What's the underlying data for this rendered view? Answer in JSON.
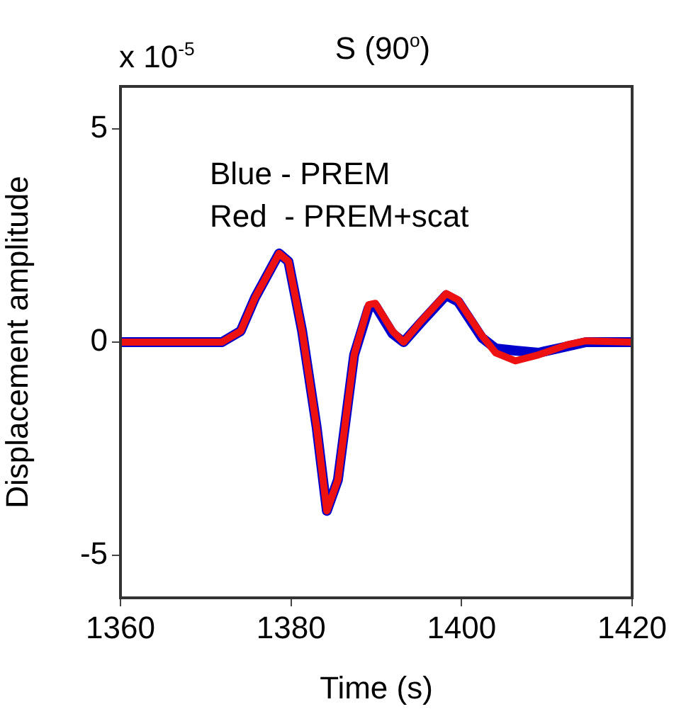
{
  "chart_data": {
    "type": "line",
    "title": "S (90$^{o}$)",
    "xlabel": "Time (s)",
    "ylabel": "Displacement amplitude",
    "annotations": [
      "x 10$^{-5}$",
      "Blue - PREM",
      "Red  - PREM+scat"
    ],
    "xlim": [
      1360,
      1420
    ],
    "xticks": [
      1360,
      1380,
      1400,
      1420
    ],
    "ylim": [
      -6,
      6
    ],
    "yticks": [
      -5,
      0,
      5
    ],
    "grid": false,
    "legend": false,
    "marker": "none",
    "line_style": "solid",
    "series": [
      {
        "color": "#0000cc",
        "x": [
          1360,
          1371.9,
          1374.1,
          1375.8,
          1378.6,
          1379.7,
          1381.3,
          1383.0,
          1384.2,
          1385.5,
          1387.4,
          1389.1,
          1389.9,
          1391.9,
          1393.2,
          1395.2,
          1398.2,
          1399.6,
          1402.4,
          1404.0,
          1406.3,
          1409.0,
          1412.4,
          1414.6,
          1420
        ],
        "values": [
          0,
          0,
          0.26,
          1.05,
          2.08,
          1.89,
          0.26,
          -1.99,
          -3.96,
          -3.23,
          -0.3,
          0.8,
          0.85,
          0.2,
          0,
          0.45,
          1.1,
          0.95,
          0.1,
          -0.15,
          -0.2,
          -0.25,
          -0.1,
          0,
          0
        ]
      },
      {
        "color": "#ee1111",
        "x": [
          1360,
          1371.9,
          1374.1,
          1375.8,
          1378.6,
          1379.7,
          1381.3,
          1383.0,
          1384.2,
          1385.5,
          1387.4,
          1389.1,
          1389.9,
          1391.9,
          1393.2,
          1395.2,
          1398.2,
          1399.6,
          1402.4,
          1404.0,
          1406.3,
          1409.0,
          1412.4,
          1414.6,
          1420
        ],
        "values": [
          0,
          0,
          0.26,
          1.05,
          2.08,
          1.89,
          0.26,
          -1.99,
          -3.96,
          -3.23,
          -0.3,
          0.88,
          0.91,
          0.26,
          0,
          0.48,
          1.14,
          0.99,
          0.15,
          -0.25,
          -0.44,
          -0.3,
          -0.06,
          0.03,
          0
        ]
      }
    ]
  }
}
